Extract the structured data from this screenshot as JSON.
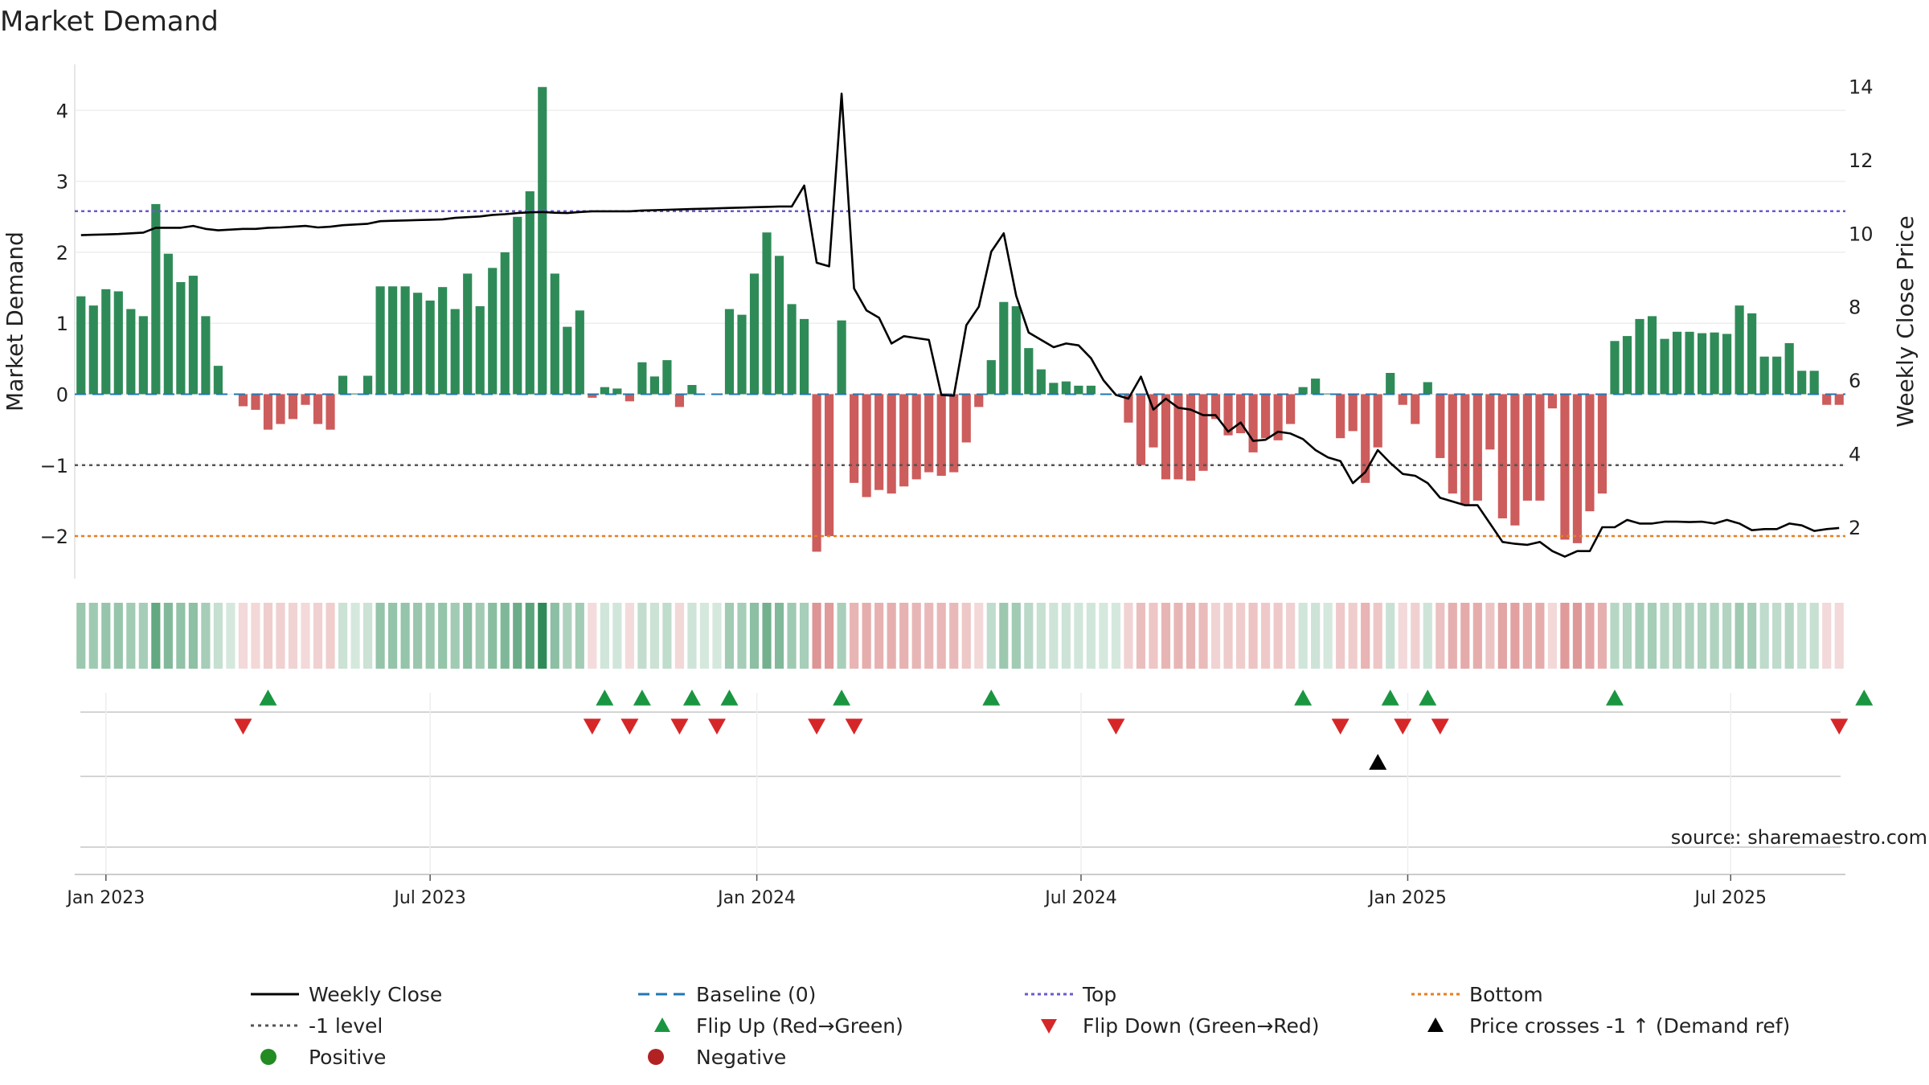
{
  "chart_data": {
    "type": "bar",
    "title": "Market Demand",
    "ylabel": "Market Demand",
    "y2label": "Weekly Close Price",
    "ylim": [
      -2.6,
      4.65
    ],
    "y2lim": [
      0.6,
      14.6
    ],
    "yticks": [
      -2,
      -1,
      0,
      1,
      2,
      3,
      4
    ],
    "yticklabels": [
      "−2",
      "−1",
      "0",
      "1",
      "2",
      "3",
      "4"
    ],
    "y2ticks": [
      2,
      4,
      6,
      8,
      10,
      12,
      14
    ],
    "xticks": [
      {
        "label": "Jan 2023",
        "week": 0
      },
      {
        "label": "Jul 2023",
        "week": 26
      },
      {
        "label": "Jan 2024",
        "week": 52.2
      },
      {
        "label": "Jul 2024",
        "week": 78.2
      },
      {
        "label": "Jan 2025",
        "week": 104.4
      },
      {
        "label": "Jul 2025",
        "week": 130.3
      }
    ],
    "start_week": -2,
    "demand": [
      1.38,
      1.25,
      1.48,
      1.45,
      1.2,
      1.1,
      2.68,
      1.98,
      1.58,
      1.67,
      1.1,
      0.4,
      0,
      -0.17,
      -0.22,
      -0.5,
      -0.42,
      -0.35,
      -0.15,
      -0.42,
      -0.5,
      0.26,
      0.01,
      0.26,
      1.52,
      1.52,
      1.52,
      1.43,
      1.32,
      1.51,
      1.2,
      1.7,
      1.24,
      1.78,
      2.0,
      2.5,
      2.86,
      4.33,
      1.7,
      0.95,
      1.18,
      -0.05,
      0.1,
      0.08,
      -0.1,
      0.45,
      0.25,
      0.48,
      -0.18,
      0.13,
      0,
      0,
      1.2,
      1.12,
      1.7,
      2.28,
      1.95,
      1.27,
      1.06,
      -2.22,
      -2.0,
      1.04,
      -1.25,
      -1.45,
      -1.35,
      -1.4,
      -1.3,
      -1.2,
      -1.1,
      -1.15,
      -1.1,
      -0.68,
      -0.18,
      0.48,
      1.3,
      1.24,
      0.65,
      0.35,
      0.16,
      0.18,
      0.12,
      0.12,
      0,
      0,
      -0.4,
      -1.0,
      -0.75,
      -1.2,
      -1.2,
      -1.22,
      -1.08,
      -0.35,
      -0.58,
      -0.55,
      -0.82,
      -0.62,
      -0.65,
      -0.42,
      0.1,
      0.22,
      0.01,
      -0.62,
      -0.52,
      -1.25,
      -0.75,
      0.3,
      -0.15,
      -0.42,
      0.17,
      -0.9,
      -1.4,
      -1.55,
      -1.5,
      -0.78,
      -1.75,
      -1.85,
      -1.5,
      -1.5,
      -0.2,
      -2.05,
      -2.1,
      -1.65,
      -1.4,
      0.75,
      0.82,
      1.06,
      1.1,
      0.78,
      0.88,
      0.88,
      0.86,
      0.87,
      0.85,
      1.25,
      1.14,
      0.53,
      0.53,
      0.72,
      0.33,
      0.33,
      -0.15,
      -0.15
    ],
    "price": [
      9.95,
      9.96,
      9.97,
      9.98,
      10.0,
      10.02,
      10.15,
      10.15,
      10.15,
      10.2,
      10.12,
      10.08,
      10.1,
      10.12,
      10.12,
      10.15,
      10.16,
      10.18,
      10.2,
      10.16,
      10.18,
      10.22,
      10.24,
      10.26,
      10.33,
      10.34,
      10.35,
      10.36,
      10.37,
      10.38,
      10.42,
      10.44,
      10.46,
      10.5,
      10.52,
      10.55,
      10.57,
      10.58,
      10.56,
      10.55,
      10.58,
      10.6,
      10.6,
      10.6,
      10.6,
      10.62,
      10.63,
      10.64,
      10.65,
      10.66,
      10.67,
      10.68,
      10.69,
      10.7,
      10.71,
      10.72,
      10.73,
      10.73,
      11.3,
      9.2,
      9.1,
      13.8,
      8.5,
      7.9,
      7.7,
      7.0,
      7.2,
      7.15,
      7.1,
      5.6,
      5.58,
      7.5,
      8.0,
      9.5,
      10.0,
      8.3,
      7.3,
      7.1,
      6.9,
      7.0,
      6.95,
      6.6,
      6.0,
      5.6,
      5.5,
      6.1,
      5.2,
      5.5,
      5.25,
      5.2,
      5.05,
      5.05,
      4.6,
      4.85,
      4.35,
      4.38,
      4.6,
      4.55,
      4.4,
      4.1,
      3.9,
      3.8,
      3.2,
      3.5,
      4.1,
      3.75,
      3.45,
      3.4,
      3.2,
      2.8,
      2.7,
      2.6,
      2.6,
      2.1,
      1.6,
      1.55,
      1.52,
      1.6,
      1.35,
      1.2,
      1.35,
      1.35,
      2.0,
      2.0,
      2.2,
      2.1,
      2.1,
      2.15,
      2.15,
      2.14,
      2.15,
      2.1,
      2.2,
      2.1,
      1.92,
      1.95,
      1.95,
      2.1,
      2.05,
      1.9,
      1.95,
      1.98
    ],
    "top_level": 2.58,
    "bottom_level": -2.0,
    "minus_one_level": -1.0,
    "flips_up": [
      13,
      40,
      43,
      47,
      50,
      59,
      71,
      96,
      103,
      106,
      121,
      141
    ],
    "flips_down": [
      11,
      39,
      42,
      46,
      49,
      57,
      60,
      81,
      99,
      104,
      107,
      139
    ],
    "price_crosses": [
      102
    ],
    "colors": {
      "positive_bar": "#2e8b57",
      "negative_bar": "#cd5c5c",
      "price_line": "#000000",
      "baseline": "#1f77b4",
      "top": "#6a5acd",
      "minus_one": "#555555",
      "bottom": "#e67e22",
      "flip_up": "#1a9641",
      "flip_down": "#d62728",
      "cross": "#000000"
    },
    "source": "source: sharemaestro.com",
    "legend": [
      {
        "label": "Weekly Close",
        "kind": "line"
      },
      {
        "label": "Baseline (0)",
        "kind": "baseline"
      },
      {
        "label": "Top",
        "kind": "top"
      },
      {
        "label": "Bottom",
        "kind": "bottom"
      },
      {
        "label": "-1 level",
        "kind": "minus1"
      },
      {
        "label": "Flip Up (Red→Green)",
        "kind": "tri-up-green"
      },
      {
        "label": "Flip Down (Green→Red)",
        "kind": "tri-down-red"
      },
      {
        "label": "Price crosses -1 ↑ (Demand ref)",
        "kind": "tri-up-black"
      },
      {
        "label": "Positive",
        "kind": "dot-green"
      },
      {
        "label": "Negative",
        "kind": "dot-red"
      }
    ]
  }
}
